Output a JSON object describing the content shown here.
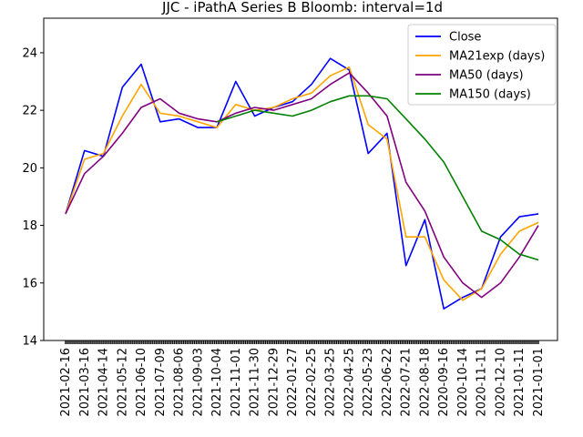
{
  "chart_data": {
    "type": "line",
    "title": "JJC - iPathA Series B Bloomb: interval=1d",
    "xlabel": "",
    "ylabel": "",
    "ylim": [
      14,
      25.2
    ],
    "yticks": [
      14,
      16,
      18,
      20,
      22,
      24
    ],
    "grid": false,
    "legend_position": "top-right",
    "categories": [
      "2021-02-16",
      "2021-03-16",
      "2021-04-14",
      "2021-05-12",
      "2021-06-10",
      "2021-07-09",
      "2021-08-06",
      "2021-09-03",
      "2021-10-04",
      "2021-11-01",
      "2021-11-30",
      "2021-12-29",
      "2022-01-27",
      "2022-02-25",
      "2022-03-25",
      "2022-04-25",
      "2022-05-23",
      "2022-06-22",
      "2022-07-21",
      "2022-08-18",
      "2020-09-16",
      "2020-10-14",
      "2020-11-11",
      "2020-12-10",
      "2021-01-11",
      "2021-01-01"
    ],
    "series": [
      {
        "name": "Close",
        "color": "#0000ff",
        "values": [
          18.4,
          20.6,
          20.4,
          22.8,
          23.6,
          21.6,
          21.7,
          21.4,
          21.4,
          23.0,
          21.8,
          22.1,
          22.3,
          22.9,
          23.8,
          23.4,
          20.5,
          21.2,
          16.6,
          18.2,
          15.1,
          15.5,
          15.8,
          17.6,
          18.3,
          18.4
        ]
      },
      {
        "name": "MA21exp (days)",
        "color": "#ffa500",
        "values": [
          18.4,
          20.3,
          20.5,
          21.8,
          22.9,
          21.9,
          21.8,
          21.6,
          21.4,
          22.2,
          22.0,
          22.1,
          22.4,
          22.6,
          23.2,
          23.5,
          21.5,
          21.0,
          17.6,
          17.6,
          16.1,
          15.4,
          15.8,
          17.0,
          17.8,
          18.1
        ]
      },
      {
        "name": "MA50 (days)",
        "color": "#800080",
        "values": [
          18.4,
          19.8,
          20.4,
          21.2,
          22.1,
          22.4,
          21.9,
          21.7,
          21.6,
          21.9,
          22.1,
          22.0,
          22.2,
          22.4,
          22.9,
          23.3,
          22.6,
          21.8,
          19.5,
          18.5,
          16.9,
          16.0,
          15.5,
          16.0,
          16.9,
          18.0
        ]
      },
      {
        "name": "MA150 (days)",
        "color": "#008000",
        "values": [
          null,
          null,
          null,
          null,
          null,
          null,
          null,
          null,
          21.6,
          21.8,
          22.0,
          21.9,
          21.8,
          22.0,
          22.3,
          22.5,
          22.5,
          22.4,
          21.7,
          21.0,
          20.2,
          19.0,
          17.8,
          17.5,
          17.0,
          16.8
        ]
      }
    ]
  }
}
